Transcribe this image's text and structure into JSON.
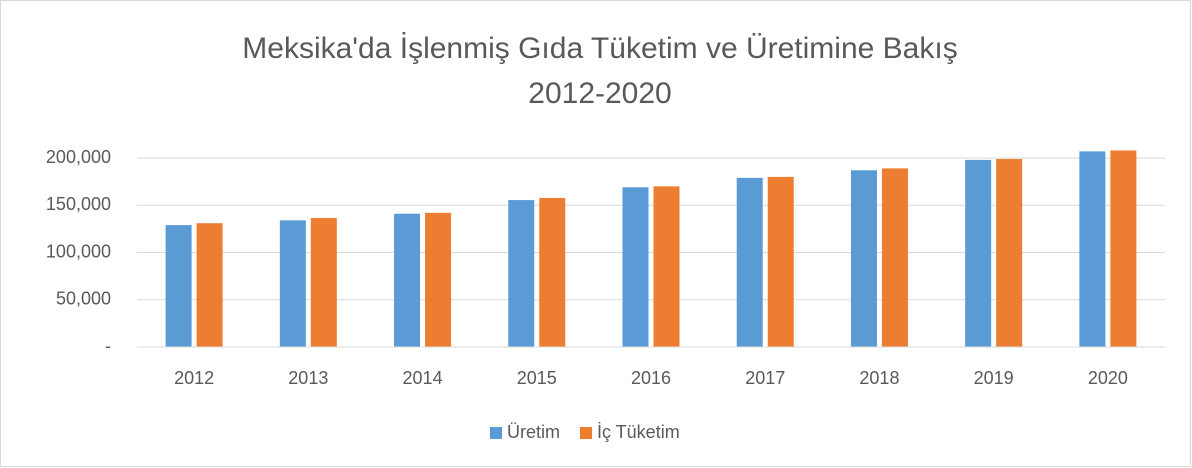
{
  "chart_data": {
    "type": "bar",
    "title": [
      "Meksika'da İşlenmiş Gıda Tüketim ve Üretimine Bakış",
      "2012-2020"
    ],
    "categories": [
      "2012",
      "2013",
      "2014",
      "2015",
      "2016",
      "2017",
      "2018",
      "2019",
      "2020"
    ],
    "series": [
      {
        "name": "Üretim",
        "color": "#5b9bd5",
        "values": [
          129000,
          134000,
          141000,
          155500,
          169000,
          179000,
          187000,
          198000,
          207000
        ]
      },
      {
        "name": "İç Tüketim",
        "color": "#ed7d31",
        "values": [
          131000,
          136500,
          142000,
          157700,
          170000,
          180000,
          189000,
          199000,
          208000
        ]
      }
    ],
    "ylim": [
      0,
      200000
    ],
    "yticks": [
      {
        "value": 0,
        "label": "-"
      },
      {
        "value": 50000,
        "label": "50,000"
      },
      {
        "value": 100000,
        "label": "100,000"
      },
      {
        "value": 150000,
        "label": "150,000"
      },
      {
        "value": 200000,
        "label": "200,000"
      }
    ],
    "grid": true,
    "legend": "bottom"
  }
}
